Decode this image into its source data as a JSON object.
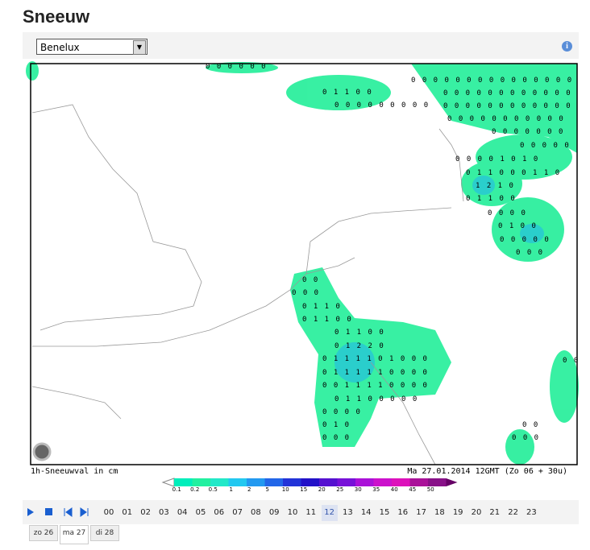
{
  "header": {
    "title": "Sneeuw"
  },
  "region_select": "Benelux",
  "map": {
    "caption_left": "1h-Sneeuwval in cm",
    "caption_right": "Ma 27.01.2014 12GMT (Zo 06 + 30u)",
    "labels": [
      "0 0 0 0 0 0",
      "0 1 1 0 0",
      "0 0 0 0 0 0 0 0 0",
      "0 0 0 0 0 0 0 0 0 0 0 0 0 0 0",
      "0 0 0 0 0 0 0 0 0 0 0 0",
      "0 0 0 0 0 0 0 0 0 0 0 0",
      "0 0 0 0 0 0 0 0 0 0 0",
      "0 0 0 0 0 0 0",
      "0 0 0 0 0",
      "0 0 0 0 1 0 1 0",
      "0 1 1 0 0 0 1 1 0",
      "1 2 1 0",
      "0 1 1 0 0",
      "0 0 0 0",
      "0 1 0 0",
      "0 0 0 0 0",
      "0 0 0",
      "0 0",
      "0 0 0",
      "0 1 1 0",
      "0 1 1 0 0",
      "0 1 1 0 0",
      "0 1 2 2 0",
      "0 1 1 1 1 0 1 0 0 0",
      "0 1 1 1 1 1 0 0 0 0",
      "0 0 1 1 1 1 0 0 0 0",
      "0 1 1 0 0 0 0 0",
      "0 0 0 0",
      "0 1 0",
      "0 0 0",
      "0 0",
      "0 0",
      "0 0 0"
    ]
  },
  "legend": [
    "0.1",
    "0.2",
    "0.5",
    "1",
    "2",
    "5",
    "10",
    "15",
    "20",
    "25",
    "30",
    "35",
    "40",
    "45",
    "50"
  ],
  "hours": [
    "00",
    "01",
    "02",
    "03",
    "04",
    "05",
    "06",
    "07",
    "08",
    "09",
    "10",
    "11",
    "12",
    "13",
    "14",
    "15",
    "16",
    "17",
    "18",
    "19",
    "20",
    "21",
    "22",
    "23"
  ],
  "days": [
    "zo 26",
    "ma 27",
    "di 28"
  ]
}
